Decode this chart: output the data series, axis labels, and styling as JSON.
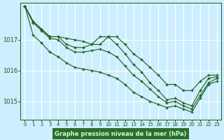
{
  "bg_color": "#cceeff",
  "grid_color": "#ffffff",
  "line_color": "#1a5c1a",
  "xlabel": "Graphe pression niveau de la mer (hPa)",
  "xlabel_bg": "#2d6e2d",
  "xlabel_fg": "#ccffcc",
  "ylim": [
    1014.4,
    1018.2
  ],
  "xlim": [
    -0.5,
    23.5
  ],
  "yticks": [
    1015,
    1016,
    1017
  ],
  "xticks": [
    0,
    1,
    2,
    3,
    4,
    5,
    6,
    7,
    8,
    9,
    10,
    11,
    12,
    13,
    14,
    15,
    16,
    17,
    18,
    19,
    20,
    21,
    22,
    23
  ],
  "series": [
    [
      1018.1,
      1017.6,
      1017.35,
      1017.1,
      1017.1,
      1017.05,
      1017.0,
      1016.95,
      1016.85,
      1016.85,
      1017.1,
      1017.1,
      1016.85,
      1016.55,
      1016.35,
      1016.1,
      1015.85,
      1015.55,
      1015.55,
      1015.35,
      1015.35,
      1015.65,
      1015.85,
      1015.85
    ],
    [
      1018.1,
      1017.6,
      1017.35,
      1017.1,
      1017.1,
      1016.85,
      1016.75,
      1016.75,
      1016.85,
      1017.1,
      1017.1,
      1016.85,
      1016.55,
      1016.2,
      1015.95,
      1015.6,
      1015.35,
      1015.05,
      1015.1,
      1014.95,
      1014.85,
      1015.35,
      1015.75,
      1015.8
    ],
    [
      1018.1,
      1017.55,
      1017.3,
      1017.05,
      1017.0,
      1016.75,
      1016.6,
      1016.6,
      1016.65,
      1016.7,
      1016.6,
      1016.45,
      1016.15,
      1015.85,
      1015.65,
      1015.4,
      1015.15,
      1014.95,
      1015.0,
      1014.85,
      1014.75,
      1015.2,
      1015.6,
      1015.75
    ],
    [
      1018.1,
      1017.15,
      1016.9,
      1016.6,
      1016.45,
      1016.25,
      1016.1,
      1016.05,
      1016.0,
      1015.95,
      1015.85,
      1015.75,
      1015.55,
      1015.3,
      1015.15,
      1015.0,
      1014.9,
      1014.8,
      1014.85,
      1014.75,
      1014.65,
      1015.1,
      1015.55,
      1015.65
    ]
  ]
}
